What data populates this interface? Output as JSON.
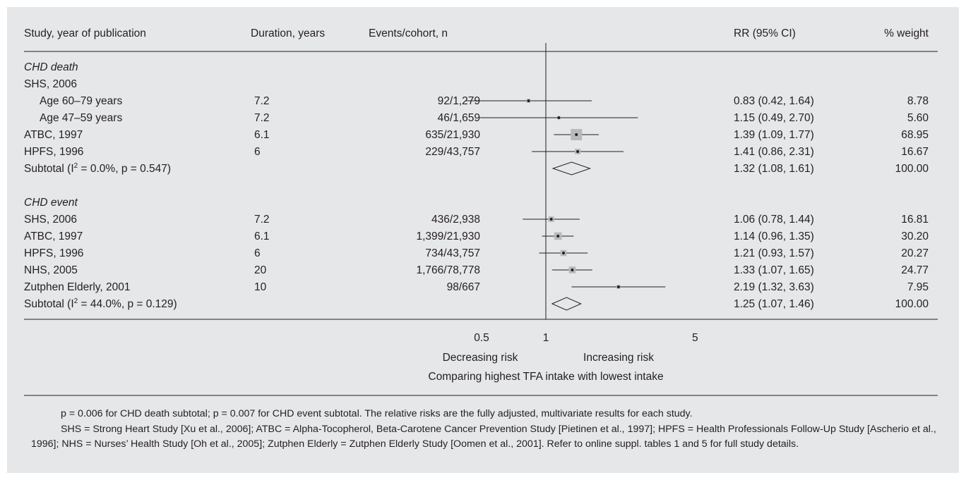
{
  "chart_data": {
    "type": "forest",
    "columns": {
      "study": "Study, year of publication",
      "duration": "Duration, years",
      "events": "Events/cohort, n",
      "rr": "RR (95% CI)",
      "weight": "% weight"
    },
    "groups": [
      {
        "label": "CHD death",
        "rows": [
          {
            "study": "SHS, 2006",
            "header": true
          },
          {
            "study": "Age 60–79 years",
            "indent": true,
            "duration": "7.2",
            "events": "92/1,279",
            "rr": 0.83,
            "lo": 0.42,
            "hi": 1.64,
            "rr_text": "0.83 (0.42, 1.64)",
            "weight": "8.78",
            "w": 8.78
          },
          {
            "study": "Age 47–59 years",
            "indent": true,
            "duration": "7.2",
            "events": "46/1,659",
            "rr": 1.15,
            "lo": 0.49,
            "hi": 2.7,
            "rr_text": "1.15 (0.49, 2.70)",
            "weight": "5.60",
            "w": 5.6
          },
          {
            "study": "ATBC, 1997",
            "duration": "6.1",
            "events": "635/21,930",
            "rr": 1.39,
            "lo": 1.09,
            "hi": 1.77,
            "rr_text": "1.39 (1.09, 1.77)",
            "weight": "68.95",
            "w": 68.95
          },
          {
            "study": "HPFS, 1996",
            "duration": "6",
            "events": "229/43,757",
            "rr": 1.41,
            "lo": 0.86,
            "hi": 2.31,
            "rr_text": "1.41 (0.86, 2.31)",
            "weight": "16.67",
            "w": 16.67
          }
        ],
        "subtotal": {
          "prefix": "Subtotal (I",
          "sup": "2",
          "suffix": " = 0.0%, p = 0.547)",
          "rr": 1.32,
          "lo": 1.08,
          "hi": 1.61,
          "rr_text": "1.32 (1.08, 1.61)",
          "weight": "100.00"
        }
      },
      {
        "label": "CHD event",
        "rows": [
          {
            "study": "SHS, 2006",
            "duration": "7.2",
            "events": "436/2,938",
            "rr": 1.06,
            "lo": 0.78,
            "hi": 1.44,
            "rr_text": "1.06 (0.78, 1.44)",
            "weight": "16.81",
            "w": 16.81
          },
          {
            "study": "ATBC, 1997",
            "duration": "6.1",
            "events": "1,399/21,930",
            "rr": 1.14,
            "lo": 0.96,
            "hi": 1.35,
            "rr_text": "1.14 (0.96, 1.35)",
            "weight": "30.20",
            "w": 30.2
          },
          {
            "study": "HPFS, 1996",
            "duration": "6",
            "events": "734/43,757",
            "rr": 1.21,
            "lo": 0.93,
            "hi": 1.57,
            "rr_text": "1.21 (0.93, 1.57)",
            "weight": "20.27",
            "w": 20.27
          },
          {
            "study": "NHS, 2005",
            "duration": "20",
            "events": "1,766/78,778",
            "rr": 1.33,
            "lo": 1.07,
            "hi": 1.65,
            "rr_text": "1.33 (1.07, 1.65)",
            "weight": "24.77",
            "w": 24.77
          },
          {
            "study": "Zutphen Elderly, 2001",
            "duration": "10",
            "events": "98/667",
            "rr": 2.19,
            "lo": 1.32,
            "hi": 3.63,
            "rr_text": "2.19 (1.32, 3.63)",
            "weight": "7.95",
            "w": 7.95
          }
        ],
        "subtotal": {
          "prefix": "Subtotal (I",
          "sup": "2",
          "suffix": " = 44.0%, p = 0.129)",
          "rr": 1.25,
          "lo": 1.07,
          "hi": 1.46,
          "rr_text": "1.25 (1.07, 1.46)",
          "weight": "100.00"
        }
      }
    ],
    "x_scale": "log",
    "reference_line": 1,
    "x_ticks": [
      {
        "value": 0.5,
        "label": "0.5"
      },
      {
        "value": 1,
        "label": "1"
      },
      {
        "value": 5,
        "label": "5"
      }
    ],
    "xlabel_left": "Decreasing risk",
    "xlabel_right": "Increasing risk",
    "xlabel": "Comparing highest TFA intake with lowest intake",
    "colors": {
      "text": "#231f20",
      "box": "#b9b9b9",
      "background": "#e6e7e8"
    }
  },
  "footnote": {
    "line1": "p = 0.006 for CHD death subtotal; p = 0.007 for CHD event subtotal. The relative risks are the fully adjusted, multivariate results for each study.",
    "line2": "SHS = Strong Heart Study [Xu et al., 2006]; ATBC = Alpha-Tocopherol, Beta-Carotene Cancer Prevention Study [Pietinen et al., 1997]; HPFS = Health Professionals Follow-Up Study [Ascherio et al., 1996]; NHS = Nurses’ Health Study [Oh et al., 2005]; Zutphen Elderly = Zutphen Elderly Study [Oomen et al., 2001]. Refer to online suppl. tables 1 and 5 for full study details."
  }
}
